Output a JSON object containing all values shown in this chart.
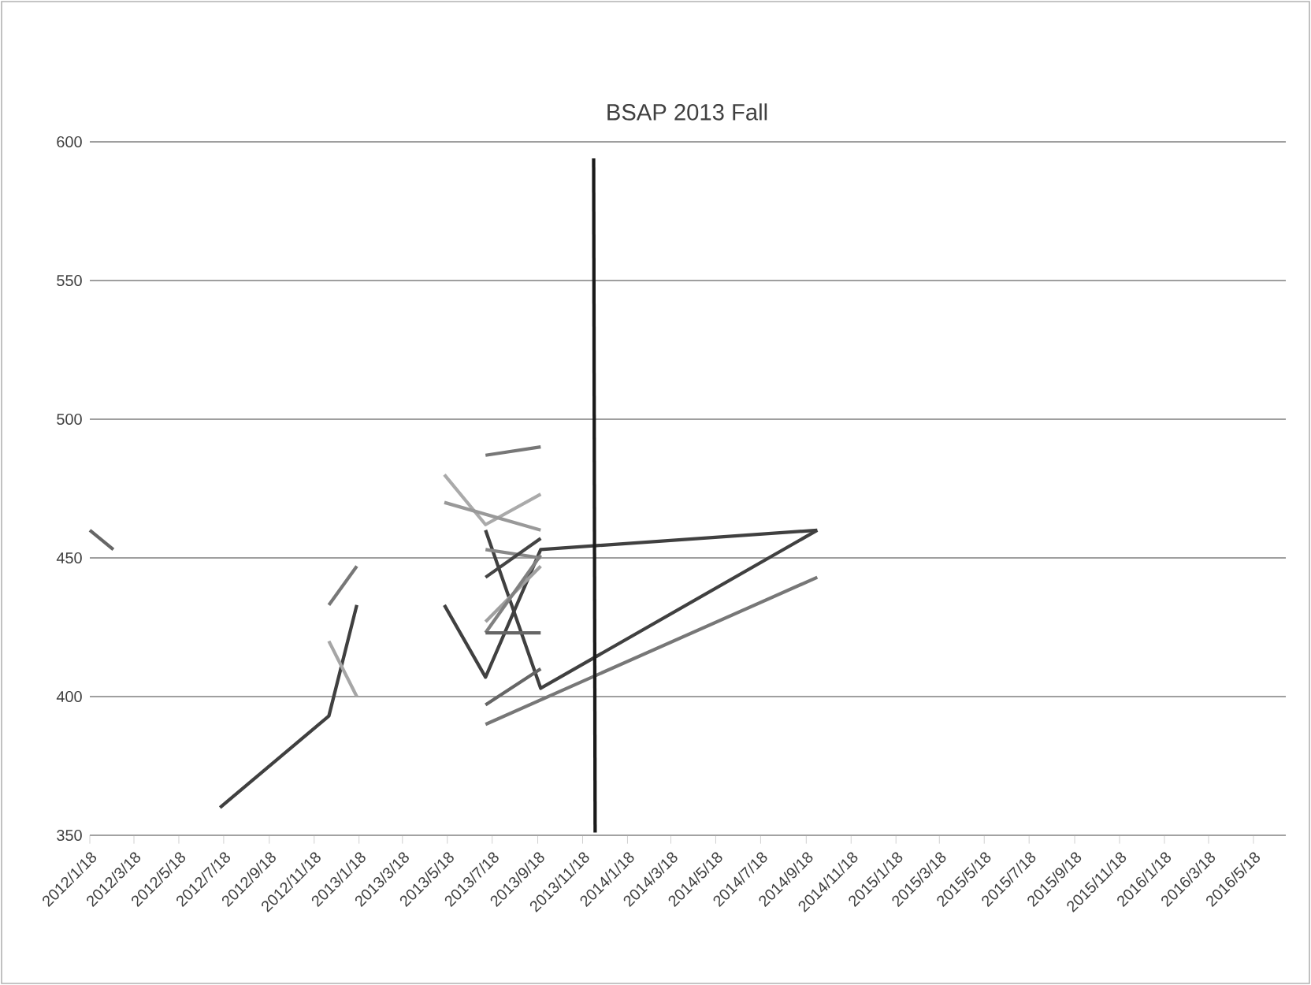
{
  "chart_data": {
    "type": "line",
    "title": "BSAP 2013 Fall",
    "xlim": [
      "2012-01-18",
      "2016-07-01"
    ],
    "xticks": [
      {
        "value": "2012-01-18",
        "label": "2012/1/18"
      },
      {
        "value": "2012-03-18",
        "label": "2012/3/18"
      },
      {
        "value": "2012-05-18",
        "label": "2012/5/18"
      },
      {
        "value": "2012-07-18",
        "label": "2012/7/18"
      },
      {
        "value": "2012-09-18",
        "label": "2012/9/18"
      },
      {
        "value": "2012-11-18",
        "label": "2012/11/18"
      },
      {
        "value": "2013-01-18",
        "label": "2013/1/18"
      },
      {
        "value": "2013-03-18",
        "label": "2013/3/18"
      },
      {
        "value": "2013-05-18",
        "label": "2013/5/18"
      },
      {
        "value": "2013-07-18",
        "label": "2013/7/18"
      },
      {
        "value": "2013-09-18",
        "label": "2013/9/18"
      },
      {
        "value": "2013-11-18",
        "label": "2013/11/18"
      },
      {
        "value": "2014-01-18",
        "label": "2014/1/18"
      },
      {
        "value": "2014-03-18",
        "label": "2014/3/18"
      },
      {
        "value": "2014-05-18",
        "label": "2014/5/18"
      },
      {
        "value": "2014-07-18",
        "label": "2014/7/18"
      },
      {
        "value": "2014-09-18",
        "label": "2014/9/18"
      },
      {
        "value": "2014-11-18",
        "label": "2014/11/18"
      },
      {
        "value": "2015-01-18",
        "label": "2015/1/18"
      },
      {
        "value": "2015-03-18",
        "label": "2015/3/18"
      },
      {
        "value": "2015-05-18",
        "label": "2015/5/18"
      },
      {
        "value": "2015-07-18",
        "label": "2015/7/18"
      },
      {
        "value": "2015-09-18",
        "label": "2015/9/18"
      },
      {
        "value": "2015-11-18",
        "label": "2015/11/18"
      },
      {
        "value": "2016-01-18",
        "label": "2016/1/18"
      },
      {
        "value": "2016-03-18",
        "label": "2016/3/18"
      },
      {
        "value": "2016-05-18",
        "label": "2016/5/18"
      }
    ],
    "ylim": [
      350,
      600
    ],
    "yticks": [
      350,
      400,
      450,
      500,
      550,
      600
    ],
    "grid": "y",
    "series": [
      {
        "color": "#666666",
        "x": [
          "2012-01-18",
          "2012-02-19"
        ],
        "values": [
          460,
          453
        ]
      },
      {
        "color": "#404040",
        "x": [
          "2012-07-13",
          "2012-12-08",
          "2013-01-15"
        ],
        "values": [
          360,
          393,
          433
        ]
      },
      {
        "color": "#777777",
        "x": [
          "2012-12-08",
          "2013-01-15"
        ],
        "values": [
          433,
          447
        ]
      },
      {
        "color": "#a6a6a6",
        "x": [
          "2012-12-08",
          "2013-01-15"
        ],
        "values": [
          420,
          400
        ]
      },
      {
        "color": "#404040",
        "x": [
          "2013-05-14",
          "2013-07-09",
          "2013-09-22",
          "2014-10-03"
        ],
        "values": [
          433,
          407,
          453,
          460
        ]
      },
      {
        "color": "#404040",
        "x": [
          "2013-07-09",
          "2013-09-22",
          "2014-10-03"
        ],
        "values": [
          460,
          403,
          460
        ]
      },
      {
        "color": "#aaaaaa",
        "x": [
          "2013-05-14",
          "2013-07-09",
          "2013-09-22"
        ],
        "values": [
          480,
          462,
          473
        ]
      },
      {
        "color": "#999999",
        "x": [
          "2013-05-14",
          "2013-09-22"
        ],
        "values": [
          470,
          460
        ]
      },
      {
        "color": "#777777",
        "x": [
          "2013-07-09",
          "2013-09-22"
        ],
        "values": [
          487,
          490
        ]
      },
      {
        "color": "#888888",
        "x": [
          "2013-07-09",
          "2013-09-22"
        ],
        "values": [
          453,
          450
        ]
      },
      {
        "color": "#444444",
        "x": [
          "2013-07-09",
          "2013-09-22"
        ],
        "values": [
          443,
          457
        ]
      },
      {
        "color": "#a0a0a0",
        "x": [
          "2013-07-09",
          "2013-09-22"
        ],
        "values": [
          427,
          447
        ]
      },
      {
        "color": "#808080",
        "x": [
          "2013-07-09",
          "2013-09-22"
        ],
        "values": [
          423,
          451
        ]
      },
      {
        "color": "#666666",
        "x": [
          "2013-07-09",
          "2013-09-22"
        ],
        "values": [
          423,
          423
        ]
      },
      {
        "color": "#666666",
        "x": [
          "2013-07-09",
          "2013-09-22"
        ],
        "values": [
          397,
          410
        ]
      },
      {
        "color": "#777777",
        "x": [
          "2013-07-09",
          "2014-10-03"
        ],
        "values": [
          390,
          443
        ]
      },
      {
        "color": "#1a1a1a",
        "x": [
          "2013-12-03",
          "2013-12-05"
        ],
        "values": [
          594,
          351
        ]
      }
    ]
  }
}
